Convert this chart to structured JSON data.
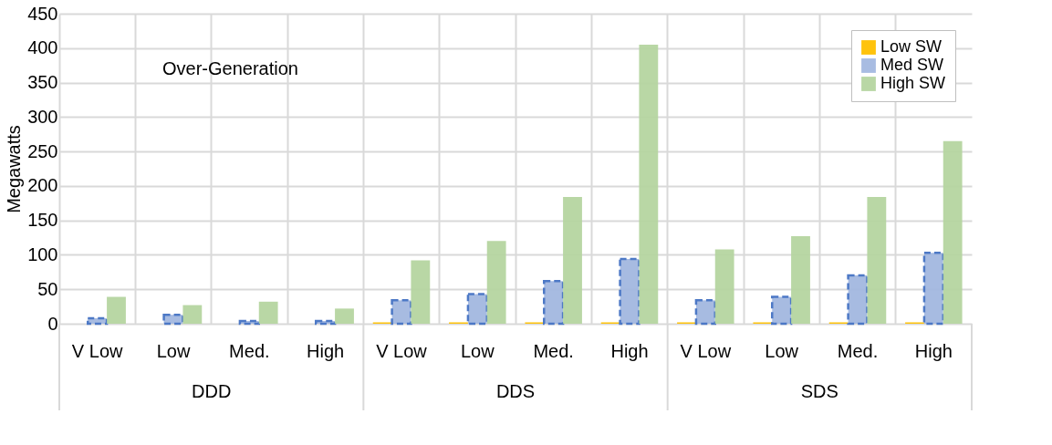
{
  "chart_data": {
    "type": "bar",
    "ylabel": "Megawatts",
    "categories": [
      "V Low",
      "Low",
      "Med.",
      "High",
      "V Low",
      "Low",
      "Med.",
      "High",
      "V Low",
      "Low",
      "Med.",
      "High"
    ],
    "annotations": [
      "Over-Generation",
      "DDD",
      "DDS",
      "SDS"
    ],
    "series": [
      {
        "name": "Low SW",
        "color": "#ffc000",
        "values": [
          0,
          0,
          0,
          0,
          2,
          2,
          2,
          2,
          2,
          2,
          2,
          2
        ]
      },
      {
        "name": "Med SW",
        "color": "#a3b8e0",
        "line_style": "dashed",
        "values": [
          8,
          13,
          4,
          4,
          34,
          43,
          62,
          94,
          34,
          39,
          70,
          103
        ]
      },
      {
        "name": "High SW",
        "color": "#b5d5a0",
        "values": [
          39,
          27,
          32,
          22,
          92,
          120,
          184,
          405,
          108,
          127,
          184,
          265
        ]
      }
    ],
    "ylim": [
      0,
      450
    ],
    "yticks": [
      0,
      50,
      100,
      150,
      200,
      250,
      300,
      350,
      400,
      450
    ],
    "grid": true,
    "legend": "top right"
  }
}
